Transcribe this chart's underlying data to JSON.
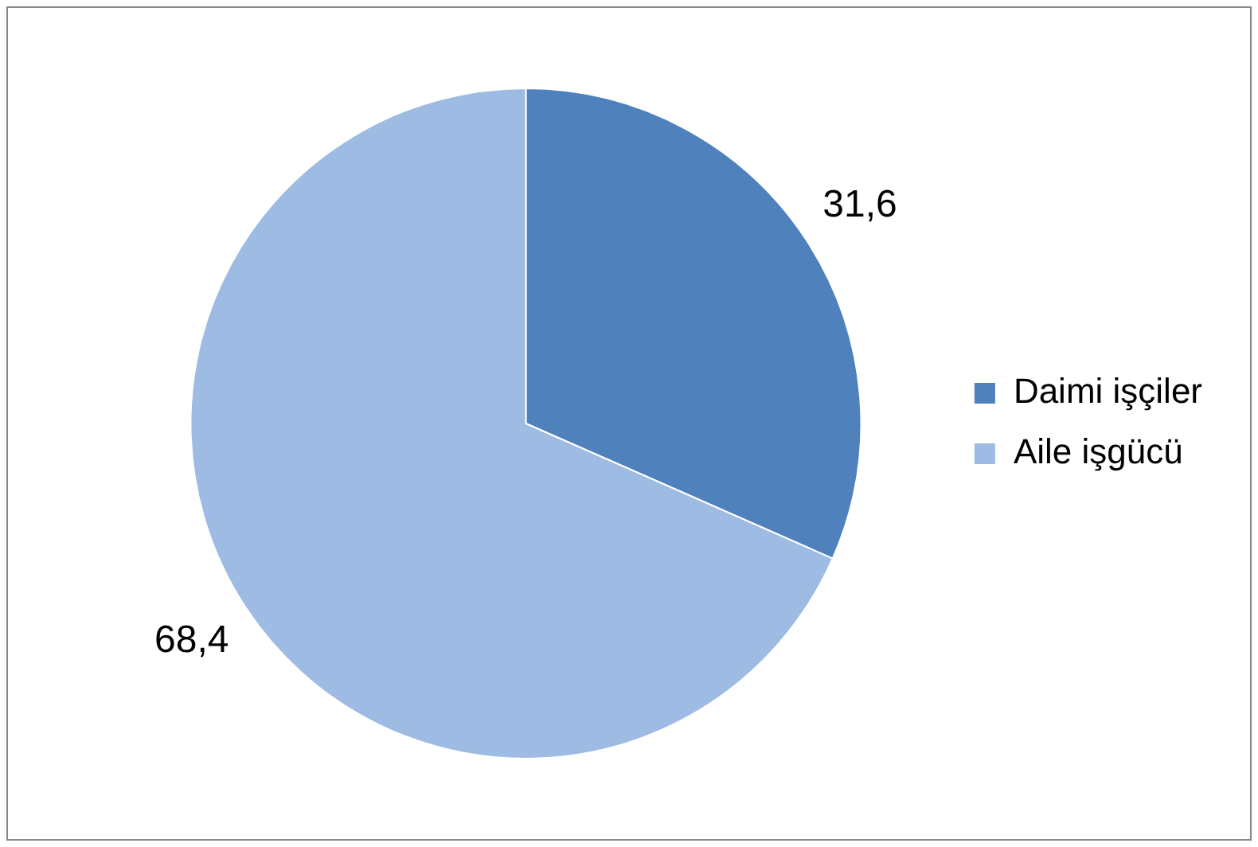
{
  "chart_data": {
    "type": "pie",
    "categories": [
      "Daimi işçiler",
      "Aile işgücü"
    ],
    "values": [
      31.6,
      68.4
    ],
    "colors": [
      "#4f81bd",
      "#9dbbe3"
    ],
    "value_labels": [
      "31,6",
      "68,4"
    ],
    "legend": "right"
  }
}
